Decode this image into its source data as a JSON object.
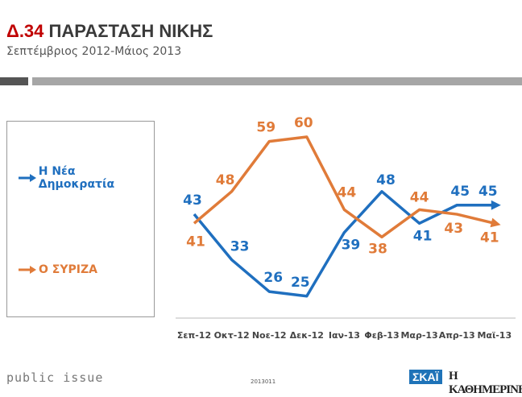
{
  "header": {
    "code": "Δ.34",
    "title": "ΠΑΡΑΣΤΑΣΗ ΝΙΚΗΣ",
    "subtitle": "Σεπτέμβριος 2012-Μάιος 2013"
  },
  "footer": {
    "brand": "public issue",
    "code": "2013011",
    "partner1": "ΣΚΑΪ",
    "partner2": "Η ΚΑΘΗΜΕΡΙΝΗ"
  },
  "chart_data": {
    "type": "line",
    "categories": [
      "Σεπ-12",
      "Οκτ-12",
      "Νοε-12",
      "Δεκ-12",
      "Ιαν-13",
      "Φεβ-13",
      "Μαρ-13",
      "Απρ-13",
      "Μαϊ-13"
    ],
    "series": [
      {
        "name": "Η Νέα Δημοκρατία",
        "color": "#1f6fbf",
        "values": [
          43,
          33,
          26,
          25,
          39,
          48,
          41,
          45,
          45
        ]
      },
      {
        "name": "Ο ΣΥΡΙΖΑ",
        "color": "#e07b39",
        "values": [
          41,
          48,
          59,
          60,
          44,
          38,
          44,
          43,
          41
        ]
      }
    ],
    "legend": "left",
    "grid": false
  }
}
